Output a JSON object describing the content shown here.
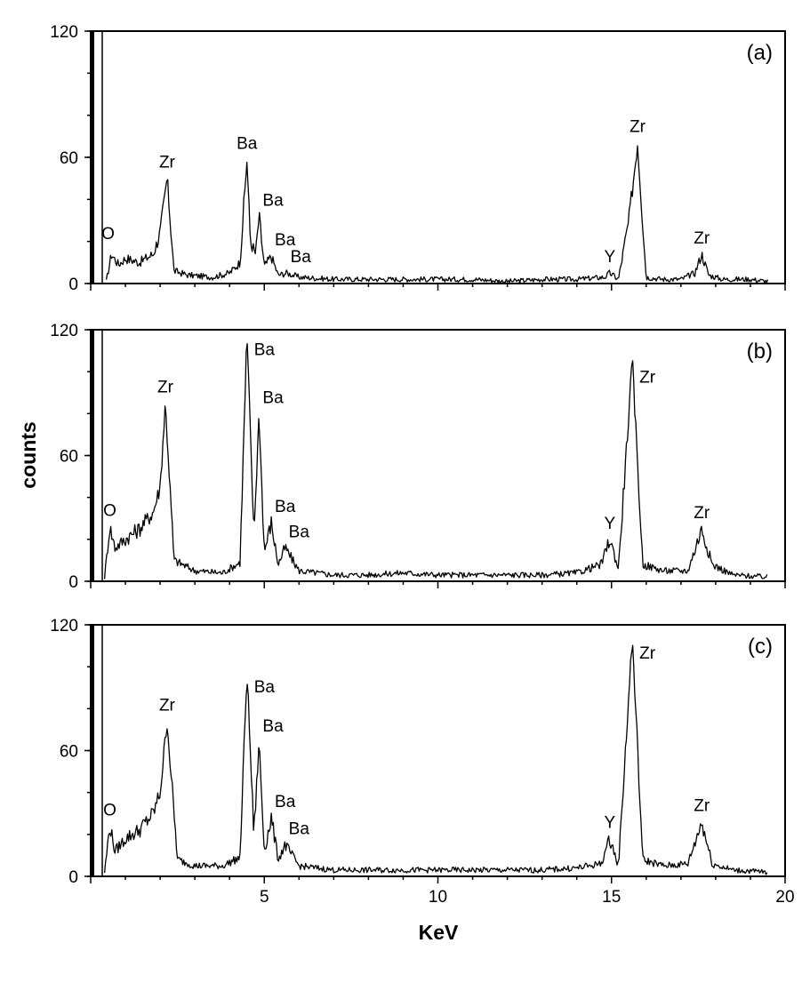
{
  "chart_data": {
    "type": "line",
    "xlabel": "KeV",
    "ylabel": "counts",
    "xlim": [
      0,
      20
    ],
    "x_ticks": [
      5,
      10,
      15,
      20
    ],
    "panels": [
      {
        "tag": "(a)",
        "ylim": [
          0,
          120
        ],
        "y_ticks": [
          0,
          60,
          120
        ],
        "peaks": [
          {
            "label": "O",
            "x": 0.5,
            "y": 16,
            "large": true
          },
          {
            "label": "Zr",
            "x": 2.2,
            "y": 50
          },
          {
            "label": "Ba",
            "x": 4.5,
            "y": 59
          },
          {
            "label": "Ba",
            "x": 4.85,
            "y": 32
          },
          {
            "label": "Ba",
            "x": 5.2,
            "y": 13
          },
          {
            "label": "Ba",
            "x": 5.65,
            "y": 5
          },
          {
            "label": "Y",
            "x": 14.95,
            "y": 5
          },
          {
            "label": "Zr",
            "x": 15.75,
            "y": 67
          },
          {
            "label": "Zr",
            "x": 17.6,
            "y": 14
          }
        ],
        "series": [
          {
            "x": [
              0.45,
              0.6,
              0.8,
              1.0,
              1.4,
              1.8,
              2.0,
              2.2,
              2.4,
              2.8,
              3.5,
              4.0,
              4.3,
              4.5,
              4.6,
              4.75,
              4.85,
              5.0,
              5.2,
              5.4,
              5.65,
              6.0,
              7,
              8,
              9,
              10,
              11,
              12,
              13,
              14,
              14.8,
              14.95,
              15.2,
              15.5,
              15.75,
              16.0,
              16.5,
              17.0,
              17.4,
              17.6,
              17.8,
              18.2,
              19,
              19.5
            ],
            "y": [
              1,
              14,
              9,
              12,
              10,
              14,
              24,
              50,
              6,
              4,
              3,
              5,
              10,
              59,
              20,
              14,
              32,
              8,
              13,
              4,
              5,
              3,
              2,
              2,
              2,
              2,
              2,
              1,
              2,
              2,
              3,
              5,
              2,
              30,
              67,
              3,
              2,
              2,
              5,
              14,
              4,
              2,
              2,
              1
            ]
          }
        ]
      },
      {
        "tag": "(b)",
        "ylim": [
          0,
          120
        ],
        "y_ticks": [
          0,
          60,
          120
        ],
        "peaks": [
          {
            "label": "O",
            "x": 0.55,
            "y": 26
          },
          {
            "label": "Zr",
            "x": 2.15,
            "y": 85
          },
          {
            "label": "Ba",
            "x": 4.5,
            "y": 118
          },
          {
            "label": "Ba",
            "x": 4.85,
            "y": 80
          },
          {
            "label": "Ba",
            "x": 5.2,
            "y": 28
          },
          {
            "label": "Ba",
            "x": 5.6,
            "y": 16
          },
          {
            "label": "Y",
            "x": 14.95,
            "y": 20
          },
          {
            "label": "Zr",
            "x": 15.6,
            "y": 105
          },
          {
            "label": "Zr",
            "x": 17.6,
            "y": 25
          }
        ],
        "series": [
          {
            "x": [
              0.4,
              0.55,
              0.7,
              1.0,
              1.4,
              1.8,
              2.0,
              2.15,
              2.4,
              3.0,
              3.8,
              4.3,
              4.5,
              4.7,
              4.85,
              5.0,
              5.2,
              5.4,
              5.6,
              6.0,
              7,
              8,
              9,
              10,
              11,
              12,
              13,
              14,
              14.7,
              14.95,
              15.2,
              15.6,
              15.9,
              16.5,
              17.2,
              17.6,
              17.9,
              18.5,
              19.5
            ],
            "y": [
              2,
              26,
              16,
              20,
              25,
              33,
              45,
              85,
              10,
              5,
              4,
              9,
              118,
              22,
              80,
              14,
              28,
              8,
              16,
              5,
              3,
              3,
              4,
              3,
              3,
              3,
              3,
              4,
              8,
              20,
              6,
              105,
              8,
              5,
              5,
              25,
              8,
              3,
              2
            ]
          }
        ]
      },
      {
        "tag": "(c)",
        "ylim": [
          0,
          120
        ],
        "y_ticks": [
          0,
          60,
          120
        ],
        "peaks": [
          {
            "label": "O",
            "x": 0.55,
            "y": 24
          },
          {
            "label": "Zr",
            "x": 2.2,
            "y": 74
          },
          {
            "label": "Ba",
            "x": 4.5,
            "y": 98
          },
          {
            "label": "Ba",
            "x": 4.85,
            "y": 64
          },
          {
            "label": "Ba",
            "x": 5.2,
            "y": 28
          },
          {
            "label": "Ba",
            "x": 5.6,
            "y": 15
          },
          {
            "label": "Y",
            "x": 14.95,
            "y": 18
          },
          {
            "label": "Zr",
            "x": 15.6,
            "y": 114
          },
          {
            "label": "Zr",
            "x": 17.6,
            "y": 26
          }
        ],
        "series": [
          {
            "x": [
              0.4,
              0.55,
              0.7,
              1.0,
              1.4,
              1.8,
              2.0,
              2.2,
              2.5,
              3.0,
              3.8,
              4.3,
              4.5,
              4.7,
              4.85,
              5.0,
              5.2,
              5.4,
              5.6,
              6.0,
              7,
              8,
              9,
              10,
              11,
              12,
              13,
              14,
              14.7,
              14.95,
              15.2,
              15.6,
              15.9,
              16.5,
              17.2,
              17.6,
              17.9,
              18.5,
              19.5
            ],
            "y": [
              2,
              24,
              12,
              18,
              22,
              30,
              40,
              74,
              8,
              5,
              5,
              9,
              98,
              20,
              64,
              12,
              28,
              8,
              15,
              5,
              3,
              3,
              3,
              3,
              3,
              3,
              3,
              4,
              6,
              18,
              5,
              114,
              8,
              5,
              6,
              26,
              6,
              3,
              2
            ]
          }
        ]
      }
    ]
  }
}
